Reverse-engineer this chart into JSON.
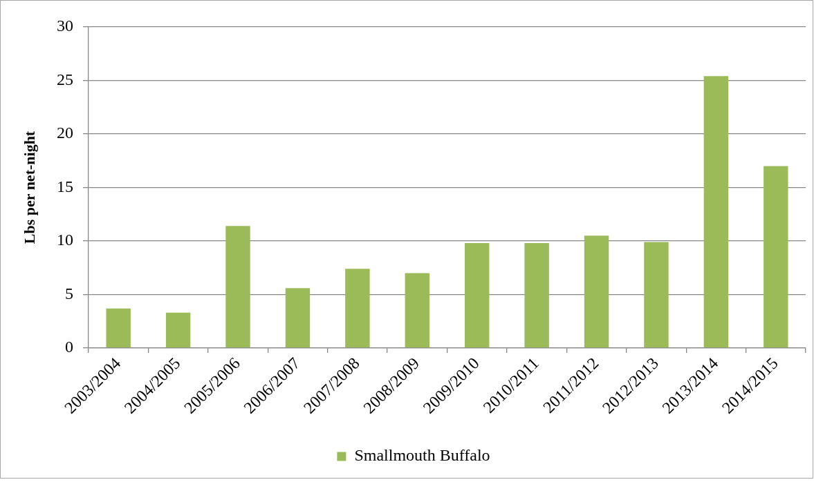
{
  "chart_data": {
    "type": "bar",
    "ylabel": "Lbs per net-night",
    "categories": [
      "2003/2004",
      "2004/2005",
      "2005/2006",
      "2006/2007",
      "2007/2008",
      "2008/2009",
      "2009/2010",
      "2010/2011",
      "2011/2012",
      "2012/2013",
      "2013/2014",
      "2014/2015"
    ],
    "series": [
      {
        "name": "Smallmouth Buffalo",
        "color": "#9bbb59",
        "values": [
          3.7,
          3.3,
          11.4,
          5.6,
          7.4,
          7.0,
          9.8,
          9.8,
          10.5,
          9.9,
          25.4,
          17.0
        ]
      }
    ],
    "ylim": [
      0,
      30
    ],
    "yticks": [
      0,
      5,
      10,
      15,
      20,
      25,
      30
    ],
    "grid": "y",
    "legend": "bottom"
  }
}
